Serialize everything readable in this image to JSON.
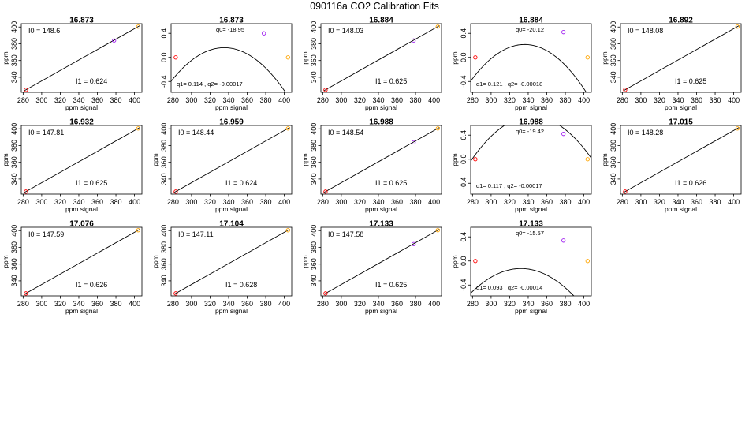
{
  "title": "090116a   CO2 Calibration Fits",
  "colors": {
    "low": "#ff0000",
    "mid": "#a020f0",
    "high": "#ffa500",
    "line": "#000000"
  },
  "chart_data": [
    {
      "type": "line",
      "kind": "linear",
      "title": "16.873",
      "xlabel": "ppm signal",
      "ylabel": "ppm",
      "xlim": [
        278,
        408
      ],
      "ylim": [
        322,
        404
      ],
      "xticks": [
        280,
        300,
        320,
        340,
        360,
        380,
        400
      ],
      "yticks": [
        340,
        360,
        380,
        400
      ],
      "ann1": "I0 =  148.6",
      "ann2": "I1 =  0.624",
      "line": [
        [
          281,
          323.8
        ],
        [
          406,
          401.8
        ]
      ],
      "points": [
        {
          "x": 283,
          "y": 325,
          "c": "low"
        },
        {
          "x": 378,
          "y": 384,
          "c": "mid"
        },
        {
          "x": 404,
          "y": 400.5,
          "c": "high"
        }
      ]
    },
    {
      "type": "line",
      "kind": "quad",
      "title": "16.873",
      "xlabel": "ppm signal",
      "ylabel": "",
      "xlim": [
        278,
        408
      ],
      "ylim": [
        -0.58,
        0.56
      ],
      "xticks": [
        280,
        300,
        320,
        340,
        360,
        380,
        400
      ],
      "yticks": [
        -0.4,
        0.0,
        0.4
      ],
      "ann1": "q0= -18.95",
      "ann2": "q1= 0.114 , q2= -0.00017",
      "coef": [
        -18.95,
        0.114,
        -0.00017
      ],
      "points": [
        {
          "x": 283,
          "y": 0.0,
          "c": "low"
        },
        {
          "x": 378,
          "y": 0.4,
          "c": "mid"
        },
        {
          "x": 404,
          "y": 0.0,
          "c": "high"
        }
      ]
    },
    {
      "type": "line",
      "kind": "linear",
      "title": "16.884",
      "xlabel": "ppm signal",
      "ylabel": "ppm",
      "xlim": [
        278,
        408
      ],
      "ylim": [
        322,
        404
      ],
      "xticks": [
        280,
        300,
        320,
        340,
        360,
        380,
        400
      ],
      "yticks": [
        340,
        360,
        380,
        400
      ],
      "ann1": "I0 =  148.03",
      "ann2": "I1 =  0.625",
      "line": [
        [
          281,
          323.8
        ],
        [
          406,
          401.8
        ]
      ],
      "points": [
        {
          "x": 283,
          "y": 325,
          "c": "low"
        },
        {
          "x": 378,
          "y": 384,
          "c": "mid"
        },
        {
          "x": 404,
          "y": 400.5,
          "c": "high"
        }
      ]
    },
    {
      "type": "line",
      "kind": "quad",
      "title": "16.884",
      "xlabel": "ppm signal",
      "ylabel": "ppm",
      "xlim": [
        278,
        408
      ],
      "ylim": [
        -0.58,
        0.56
      ],
      "xticks": [
        280,
        300,
        320,
        340,
        360,
        380,
        400
      ],
      "yticks": [
        -0.4,
        0.0,
        0.4
      ],
      "ann1": "q0= -20.12",
      "ann2": "q1= 0.121 , q2= -0.00018",
      "coef": [
        -20.12,
        0.121,
        -0.00018
      ],
      "points": [
        {
          "x": 283,
          "y": 0.0,
          "c": "low"
        },
        {
          "x": 378,
          "y": 0.42,
          "c": "mid"
        },
        {
          "x": 404,
          "y": 0.0,
          "c": "high"
        }
      ]
    },
    {
      "type": "line",
      "kind": "linear",
      "title": "16.892",
      "xlabel": "ppm signal",
      "ylabel": "ppm",
      "xlim": [
        278,
        408
      ],
      "ylim": [
        322,
        404
      ],
      "xticks": [
        280,
        300,
        320,
        340,
        360,
        380,
        400
      ],
      "yticks": [
        340,
        360,
        380,
        400
      ],
      "ann1": "I0 =  148.08",
      "ann2": "I1 =  0.625",
      "line": [
        [
          281,
          323.8
        ],
        [
          406,
          401.8
        ]
      ],
      "points": [
        {
          "x": 283,
          "y": 325,
          "c": "low"
        },
        {
          "x": 404,
          "y": 400.5,
          "c": "high"
        }
      ]
    },
    {
      "type": "line",
      "kind": "linear",
      "title": "16.932",
      "xlabel": "ppm signal",
      "ylabel": "ppm",
      "xlim": [
        278,
        408
      ],
      "ylim": [
        322,
        404
      ],
      "xticks": [
        280,
        300,
        320,
        340,
        360,
        380,
        400
      ],
      "yticks": [
        340,
        360,
        380,
        400
      ],
      "ann1": "I0 =  147.81",
      "ann2": "I1 =  0.625",
      "line": [
        [
          281,
          323.8
        ],
        [
          406,
          401.8
        ]
      ],
      "points": [
        {
          "x": 283,
          "y": 325,
          "c": "low"
        },
        {
          "x": 404,
          "y": 400.5,
          "c": "high"
        }
      ]
    },
    {
      "type": "line",
      "kind": "linear",
      "title": "16.959",
      "xlabel": "ppm signal",
      "ylabel": "ppm",
      "xlim": [
        278,
        408
      ],
      "ylim": [
        322,
        404
      ],
      "xticks": [
        280,
        300,
        320,
        340,
        360,
        380,
        400
      ],
      "yticks": [
        340,
        360,
        380,
        400
      ],
      "ann1": "I0 =  148.44",
      "ann2": "I1 =  0.624",
      "line": [
        [
          281,
          323.8
        ],
        [
          406,
          401.8
        ]
      ],
      "points": [
        {
          "x": 283,
          "y": 325,
          "c": "low"
        },
        {
          "x": 404,
          "y": 400.5,
          "c": "high"
        }
      ]
    },
    {
      "type": "line",
      "kind": "linear",
      "title": "16.988",
      "xlabel": "ppm signal",
      "ylabel": "ppm",
      "xlim": [
        278,
        408
      ],
      "ylim": [
        322,
        404
      ],
      "xticks": [
        280,
        300,
        320,
        340,
        360,
        380,
        400
      ],
      "yticks": [
        340,
        360,
        380,
        400
      ],
      "ann1": "I0 =  148.54",
      "ann2": "I1 =  0.625",
      "line": [
        [
          281,
          323.8
        ],
        [
          406,
          401.8
        ]
      ],
      "points": [
        {
          "x": 283,
          "y": 325,
          "c": "low"
        },
        {
          "x": 378,
          "y": 384,
          "c": "mid"
        },
        {
          "x": 404,
          "y": 400.5,
          "c": "high"
        }
      ]
    },
    {
      "type": "line",
      "kind": "quad",
      "title": "16.988",
      "xlabel": "ppm signal",
      "ylabel": "ppm",
      "xlim": [
        278,
        408
      ],
      "ylim": [
        -0.58,
        0.56
      ],
      "xticks": [
        280,
        300,
        320,
        340,
        360,
        380,
        400
      ],
      "yticks": [
        -0.4,
        0.0,
        0.4
      ],
      "ann1": "q0= -19.42",
      "ann2": "q1= 0.117 , q2= -0.00017",
      "coef": [
        -19.42,
        0.117,
        -0.00017
      ],
      "points": [
        {
          "x": 283,
          "y": 0.0,
          "c": "low"
        },
        {
          "x": 378,
          "y": 0.42,
          "c": "mid"
        },
        {
          "x": 404,
          "y": 0.0,
          "c": "high"
        }
      ]
    },
    {
      "type": "line",
      "kind": "linear",
      "title": "17.015",
      "xlabel": "ppm signal",
      "ylabel": "ppm",
      "xlim": [
        278,
        408
      ],
      "ylim": [
        322,
        404
      ],
      "xticks": [
        280,
        300,
        320,
        340,
        360,
        380,
        400
      ],
      "yticks": [
        340,
        360,
        380,
        400
      ],
      "ann1": "I0 =  148.28",
      "ann2": "I1 =  0.626",
      "line": [
        [
          281,
          323.8
        ],
        [
          406,
          401.8
        ]
      ],
      "points": [
        {
          "x": 283,
          "y": 325,
          "c": "low"
        },
        {
          "x": 404,
          "y": 400.5,
          "c": "high"
        }
      ]
    },
    {
      "type": "line",
      "kind": "linear",
      "title": "17.076",
      "xlabel": "ppm signal",
      "ylabel": "ppm",
      "xlim": [
        278,
        408
      ],
      "ylim": [
        322,
        404
      ],
      "xticks": [
        280,
        300,
        320,
        340,
        360,
        380,
        400
      ],
      "yticks": [
        340,
        360,
        380,
        400
      ],
      "ann1": "I0 =  147.59",
      "ann2": "I1 =  0.626",
      "line": [
        [
          281,
          323.8
        ],
        [
          406,
          401.8
        ]
      ],
      "points": [
        {
          "x": 283,
          "y": 325,
          "c": "low"
        },
        {
          "x": 404,
          "y": 400.5,
          "c": "high"
        }
      ]
    },
    {
      "type": "line",
      "kind": "linear",
      "title": "17.104",
      "xlabel": "ppm signal",
      "ylabel": "ppm",
      "xlim": [
        278,
        408
      ],
      "ylim": [
        322,
        404
      ],
      "xticks": [
        280,
        300,
        320,
        340,
        360,
        380,
        400
      ],
      "yticks": [
        340,
        360,
        380,
        400
      ],
      "ann1": "I0 =  147.11",
      "ann2": "I1 =  0.628",
      "line": [
        [
          281,
          323.8
        ],
        [
          406,
          401.8
        ]
      ],
      "points": [
        {
          "x": 283,
          "y": 325,
          "c": "low"
        },
        {
          "x": 404,
          "y": 400.5,
          "c": "high"
        }
      ]
    },
    {
      "type": "line",
      "kind": "linear",
      "title": "17.133",
      "xlabel": "ppm signal",
      "ylabel": "ppm",
      "xlim": [
        278,
        408
      ],
      "ylim": [
        322,
        404
      ],
      "xticks": [
        280,
        300,
        320,
        340,
        360,
        380,
        400
      ],
      "yticks": [
        340,
        360,
        380,
        400
      ],
      "ann1": "I0 =  147.58",
      "ann2": "I1 =  0.625",
      "line": [
        [
          281,
          323.8
        ],
        [
          406,
          401.8
        ]
      ],
      "points": [
        {
          "x": 283,
          "y": 325,
          "c": "low"
        },
        {
          "x": 378,
          "y": 384,
          "c": "mid"
        },
        {
          "x": 404,
          "y": 400.5,
          "c": "high"
        }
      ]
    },
    {
      "type": "line",
      "kind": "quad",
      "title": "17.133",
      "xlabel": "ppm signal",
      "ylabel": "ppm",
      "xlim": [
        278,
        408
      ],
      "ylim": [
        -0.58,
        0.56
      ],
      "xticks": [
        280,
        300,
        320,
        340,
        360,
        380,
        400
      ],
      "yticks": [
        -0.4,
        0.0,
        0.4
      ],
      "ann1": "q0= -15.57",
      "ann2": "q1= 0.093 , q2= -0.00014",
      "coef": [
        -15.57,
        0.093,
        -0.00014
      ],
      "points": [
        {
          "x": 283,
          "y": 0.0,
          "c": "low"
        },
        {
          "x": 378,
          "y": 0.34,
          "c": "mid"
        },
        {
          "x": 404,
          "y": 0.0,
          "c": "high"
        }
      ]
    }
  ]
}
